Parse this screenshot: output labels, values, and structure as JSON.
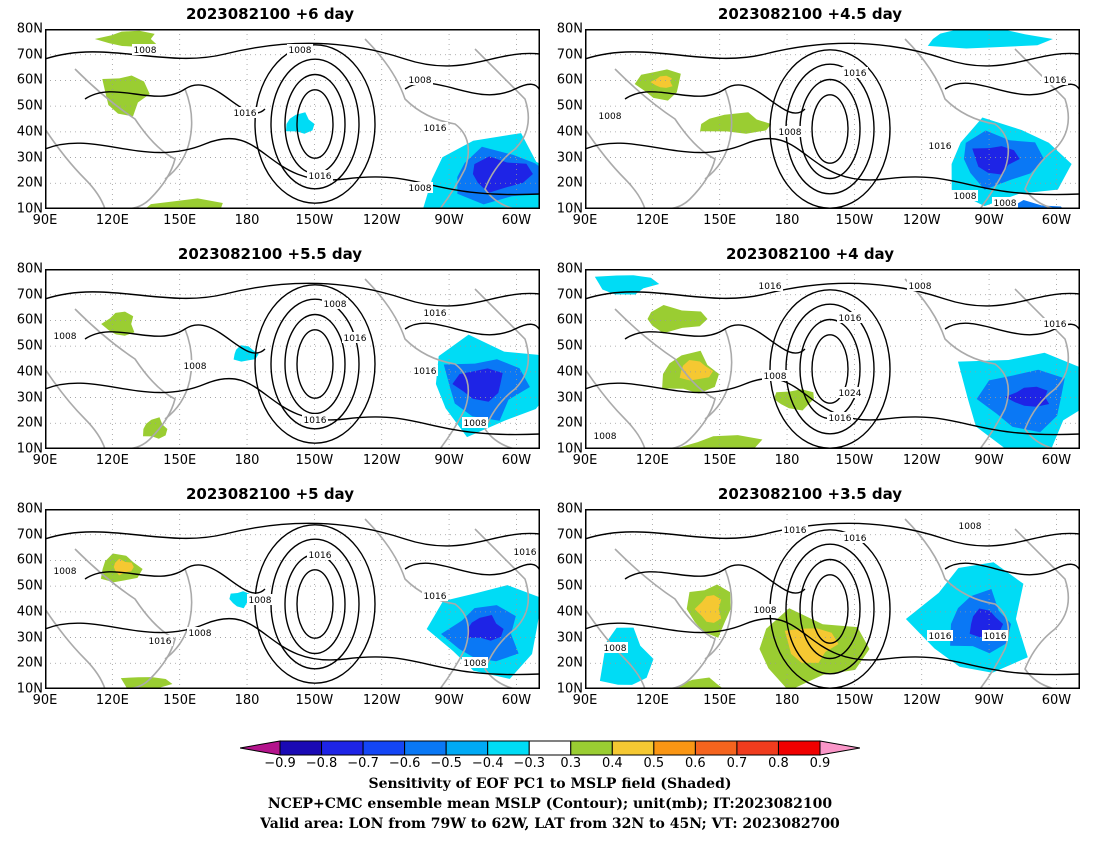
{
  "panels": [
    {
      "title": "2023082100 +6 day"
    },
    {
      "title": "2023082100 +4.5 day"
    },
    {
      "title": "2023082100 +5.5 day"
    },
    {
      "title": "2023082100 +4 day"
    },
    {
      "title": "2023082100 +5 day"
    },
    {
      "title": "2023082100 +3.5 day"
    }
  ],
  "axes": {
    "y_labels": [
      "80N",
      "70N",
      "60N",
      "50N",
      "40N",
      "30N",
      "20N",
      "10N"
    ],
    "x_labels": [
      "90E",
      "120E",
      "150E",
      "180",
      "150W",
      "120W",
      "90W",
      "60W"
    ]
  },
  "contour_labels": [
    [
      "1008",
      "1008",
      "1008",
      "1016",
      "1016",
      "1016",
      "1008"
    ],
    [
      "1016",
      "1016",
      "1008",
      "1008",
      "1016",
      "1008",
      "1008"
    ],
    [
      "1008",
      "1008",
      "1016",
      "1016",
      "1008",
      "1016",
      "1016",
      "1008"
    ],
    [
      "1008",
      "1016",
      "1016",
      "1016",
      "1008",
      "1024",
      "1016",
      "1008"
    ],
    [
      "1008",
      "1016",
      "1008",
      "1016",
      "1008",
      "1016",
      "1008",
      "1016"
    ],
    [
      "1016",
      "1016",
      "1008",
      "1008",
      "1008",
      "1016",
      "1016"
    ]
  ],
  "colorbar": {
    "labels": [
      "−0.9",
      "−0.8",
      "−0.7",
      "−0.6",
      "−0.5",
      "−0.4",
      "−0.3",
      "0.3",
      "0.4",
      "0.5",
      "0.6",
      "0.7",
      "0.8",
      "0.9"
    ],
    "colors": [
      "#1a0ab4",
      "#1e24e6",
      "#1446f5",
      "#0a78f5",
      "#00aaf5",
      "#00dcf5",
      "#ffffff",
      "#9acd32",
      "#f5c832",
      "#fa9614",
      "#f5641e",
      "#f03c1e",
      "#f00000"
    ],
    "low_extend_color": "#b4148c",
    "high_extend_color": "#fa96c8"
  },
  "caption": {
    "line1": "Sensitivity of EOF PC1 to MSLP field (Shaded)",
    "line2": "NCEP+CMC ensemble mean MSLP (Contour); unit(mb); IT:2023082100",
    "line3": "Valid area: LON from 79W to 62W, LAT from 32N to 45N; VT: 2023082700"
  }
}
